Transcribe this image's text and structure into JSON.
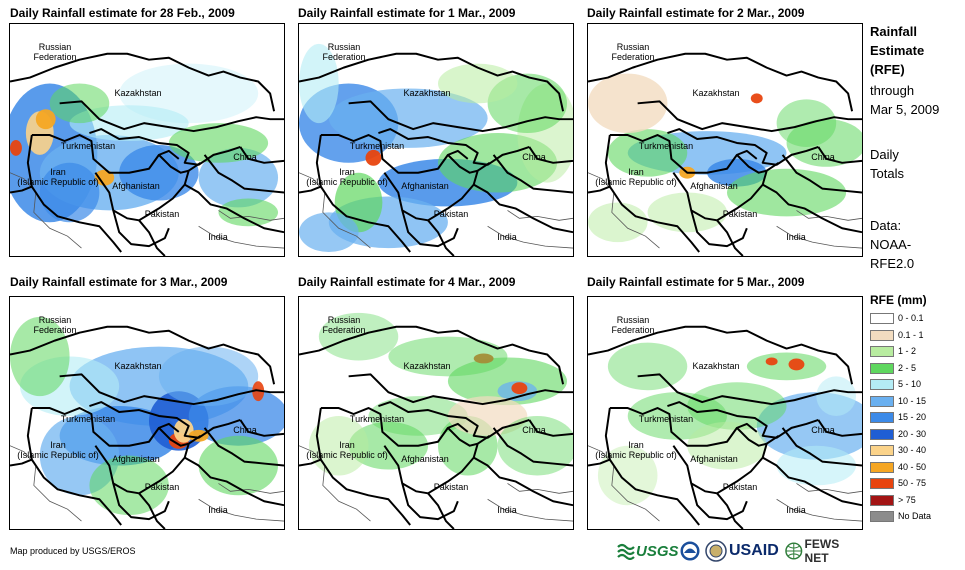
{
  "panels": [
    {
      "title": "Daily Rainfall estimate for 28 Feb., 2009"
    },
    {
      "title": "Daily Rainfall estimate for 1 Mar., 2009"
    },
    {
      "title": "Daily Rainfall estimate for 2 Mar., 2009"
    },
    {
      "title": "Daily Rainfall estimate for 3 Mar., 2009"
    },
    {
      "title": "Daily Rainfall estimate for 4 Mar., 2009"
    },
    {
      "title": "Daily Rainfall estimate for 5 Mar., 2009"
    }
  ],
  "map_labels": {
    "russia_line1": "Russian",
    "russia_line2": "Federation",
    "kazakhstan": "Kazakhstan",
    "turkmenistan": "Turkmenistan",
    "iran_line1": "Iran",
    "iran_line2": "(Islamic Republic of)",
    "afghanistan": "Afghanistan",
    "pakistan": "Pakistan",
    "china": "China",
    "india": "India"
  },
  "side": {
    "title_line1": "Rainfall",
    "title_line2": "Estimate",
    "title_line3": "(RFE)",
    "through": "through",
    "date": "Mar 5, 2009",
    "daily": "Daily",
    "totals": "Totals",
    "data_label": "Data:",
    "source_line1": "NOAA-",
    "source_line2": "RFE2.0"
  },
  "legend": {
    "title": "RFE (mm)",
    "items": [
      {
        "label": "0 - 0.1",
        "color": "#ffffff"
      },
      {
        "label": "0.1 - 1",
        "color": "#f2dcc0"
      },
      {
        "label": "1 - 2",
        "color": "#b8eca0"
      },
      {
        "label": "2 - 5",
        "color": "#5fd75f"
      },
      {
        "label": "5 - 10",
        "color": "#b4ecf5"
      },
      {
        "label": "10 - 15",
        "color": "#6ab0f0"
      },
      {
        "label": "15 - 20",
        "color": "#3c8ae8"
      },
      {
        "label": "20 - 30",
        "color": "#1f5ed4"
      },
      {
        "label": "30 - 40",
        "color": "#fbd38a"
      },
      {
        "label": "40 - 50",
        "color": "#f5a623"
      },
      {
        "label": "50 - 75",
        "color": "#e8440f"
      },
      {
        "label": "> 75",
        "color": "#a31414"
      },
      {
        "label": "No Data",
        "color": "#8c8c8c"
      }
    ]
  },
  "footer": {
    "text": "Map produced by USGS/EROS"
  },
  "logos": {
    "usgs": "USGS",
    "usaid": "USAID",
    "fewsnet": "FEWS NET"
  }
}
